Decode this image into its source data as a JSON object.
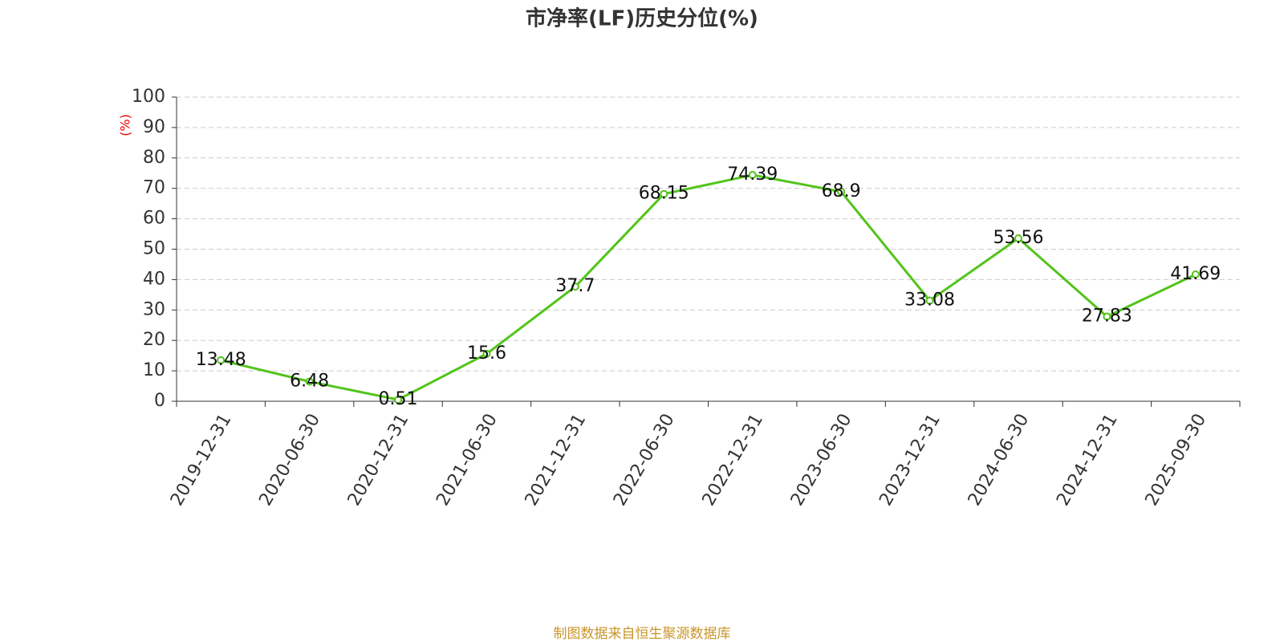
{
  "chart_data": {
    "type": "line",
    "title": "市净率(LF)历史分位(%)",
    "y_label": "(%)",
    "categories": [
      "2019-12-31",
      "2020-06-30",
      "2020-12-31",
      "2021-06-30",
      "2021-12-31",
      "2022-06-30",
      "2022-12-31",
      "2023-06-30",
      "2023-12-31",
      "2024-06-30",
      "2024-12-31",
      "2025-09-30"
    ],
    "values": [
      13.48,
      6.48,
      0.51,
      15.6,
      37.7,
      68.15,
      74.39,
      68.9,
      33.08,
      53.56,
      27.83,
      41.69
    ],
    "color": "#52c41a",
    "ylim": [
      0,
      100
    ],
    "yticks": [
      0,
      10,
      20,
      30,
      40,
      50,
      60,
      70,
      80,
      90,
      100
    ],
    "grid": true,
    "source": "制图数据来自恒生聚源数据库"
  }
}
